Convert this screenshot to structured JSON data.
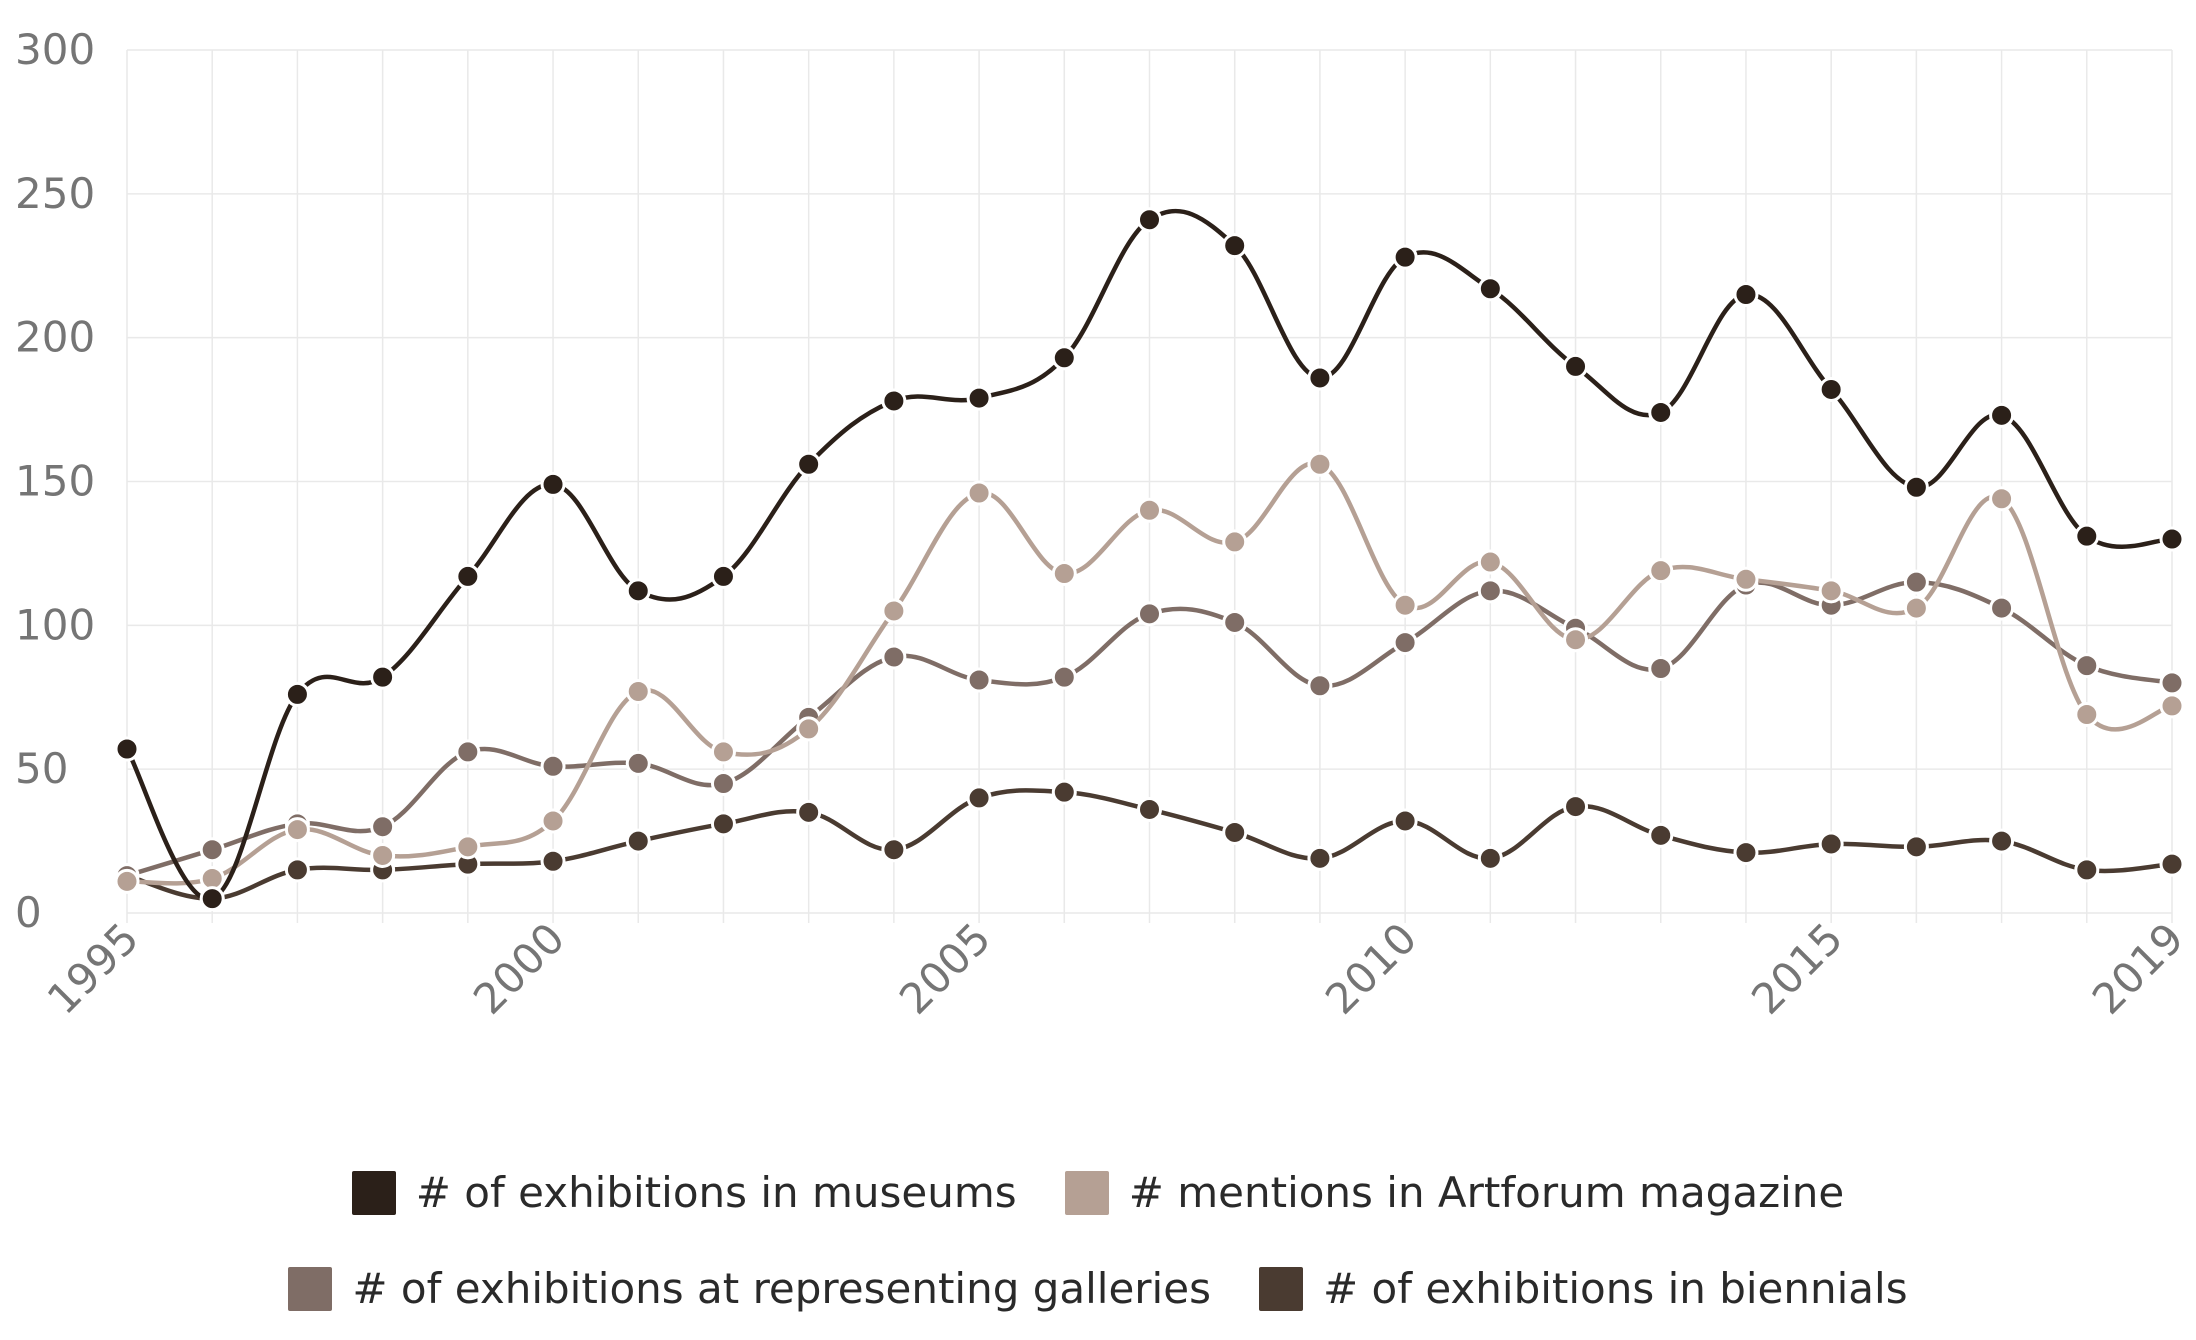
{
  "chart_data": {
    "type": "line",
    "x": [
      1995,
      1996,
      1997,
      1998,
      1999,
      2000,
      2001,
      2002,
      2003,
      2004,
      2005,
      2006,
      2007,
      2008,
      2009,
      2010,
      2011,
      2012,
      2013,
      2014,
      2015,
      2016,
      2017,
      2018,
      2019
    ],
    "x_tick_labels": [
      "1995",
      "2000",
      "2005",
      "2010",
      "2015",
      "2019"
    ],
    "y_tick_labels": [
      "0",
      "50",
      "100",
      "150",
      "200",
      "250",
      "300"
    ],
    "ylim": [
      0,
      300
    ],
    "xlim": [
      1995,
      2019
    ],
    "grid": true,
    "legend_position": "bottom",
    "series": [
      {
        "name": "# of exhibitions in museums",
        "color": "#2b2019",
        "values": [
          57,
          5,
          76,
          82,
          117,
          149,
          112,
          117,
          156,
          178,
          179,
          193,
          241,
          232,
          186,
          228,
          217,
          190,
          174,
          215,
          182,
          148,
          173,
          131,
          130
        ]
      },
      {
        "name": "# mentions in Artforum magazine",
        "color": "#b5a094",
        "values": [
          11,
          12,
          29,
          20,
          23,
          32,
          77,
          56,
          64,
          105,
          146,
          118,
          140,
          129,
          156,
          107,
          122,
          95,
          119,
          116,
          112,
          106,
          144,
          69,
          72
        ]
      },
      {
        "name": "# of exhibitions at representing galleries",
        "color": "#7f6d66",
        "values": [
          13,
          22,
          31,
          30,
          56,
          51,
          52,
          45,
          68,
          89,
          81,
          82,
          104,
          101,
          79,
          94,
          112,
          99,
          85,
          114,
          107,
          115,
          106,
          86,
          80
        ]
      },
      {
        "name": "# of exhibitions in biennials",
        "color": "#4a3b31",
        "values": [
          13,
          5,
          15,
          15,
          17,
          18,
          25,
          31,
          35,
          22,
          40,
          42,
          36,
          28,
          19,
          32,
          19,
          37,
          27,
          21,
          24,
          23,
          25,
          15,
          17
        ]
      }
    ]
  }
}
